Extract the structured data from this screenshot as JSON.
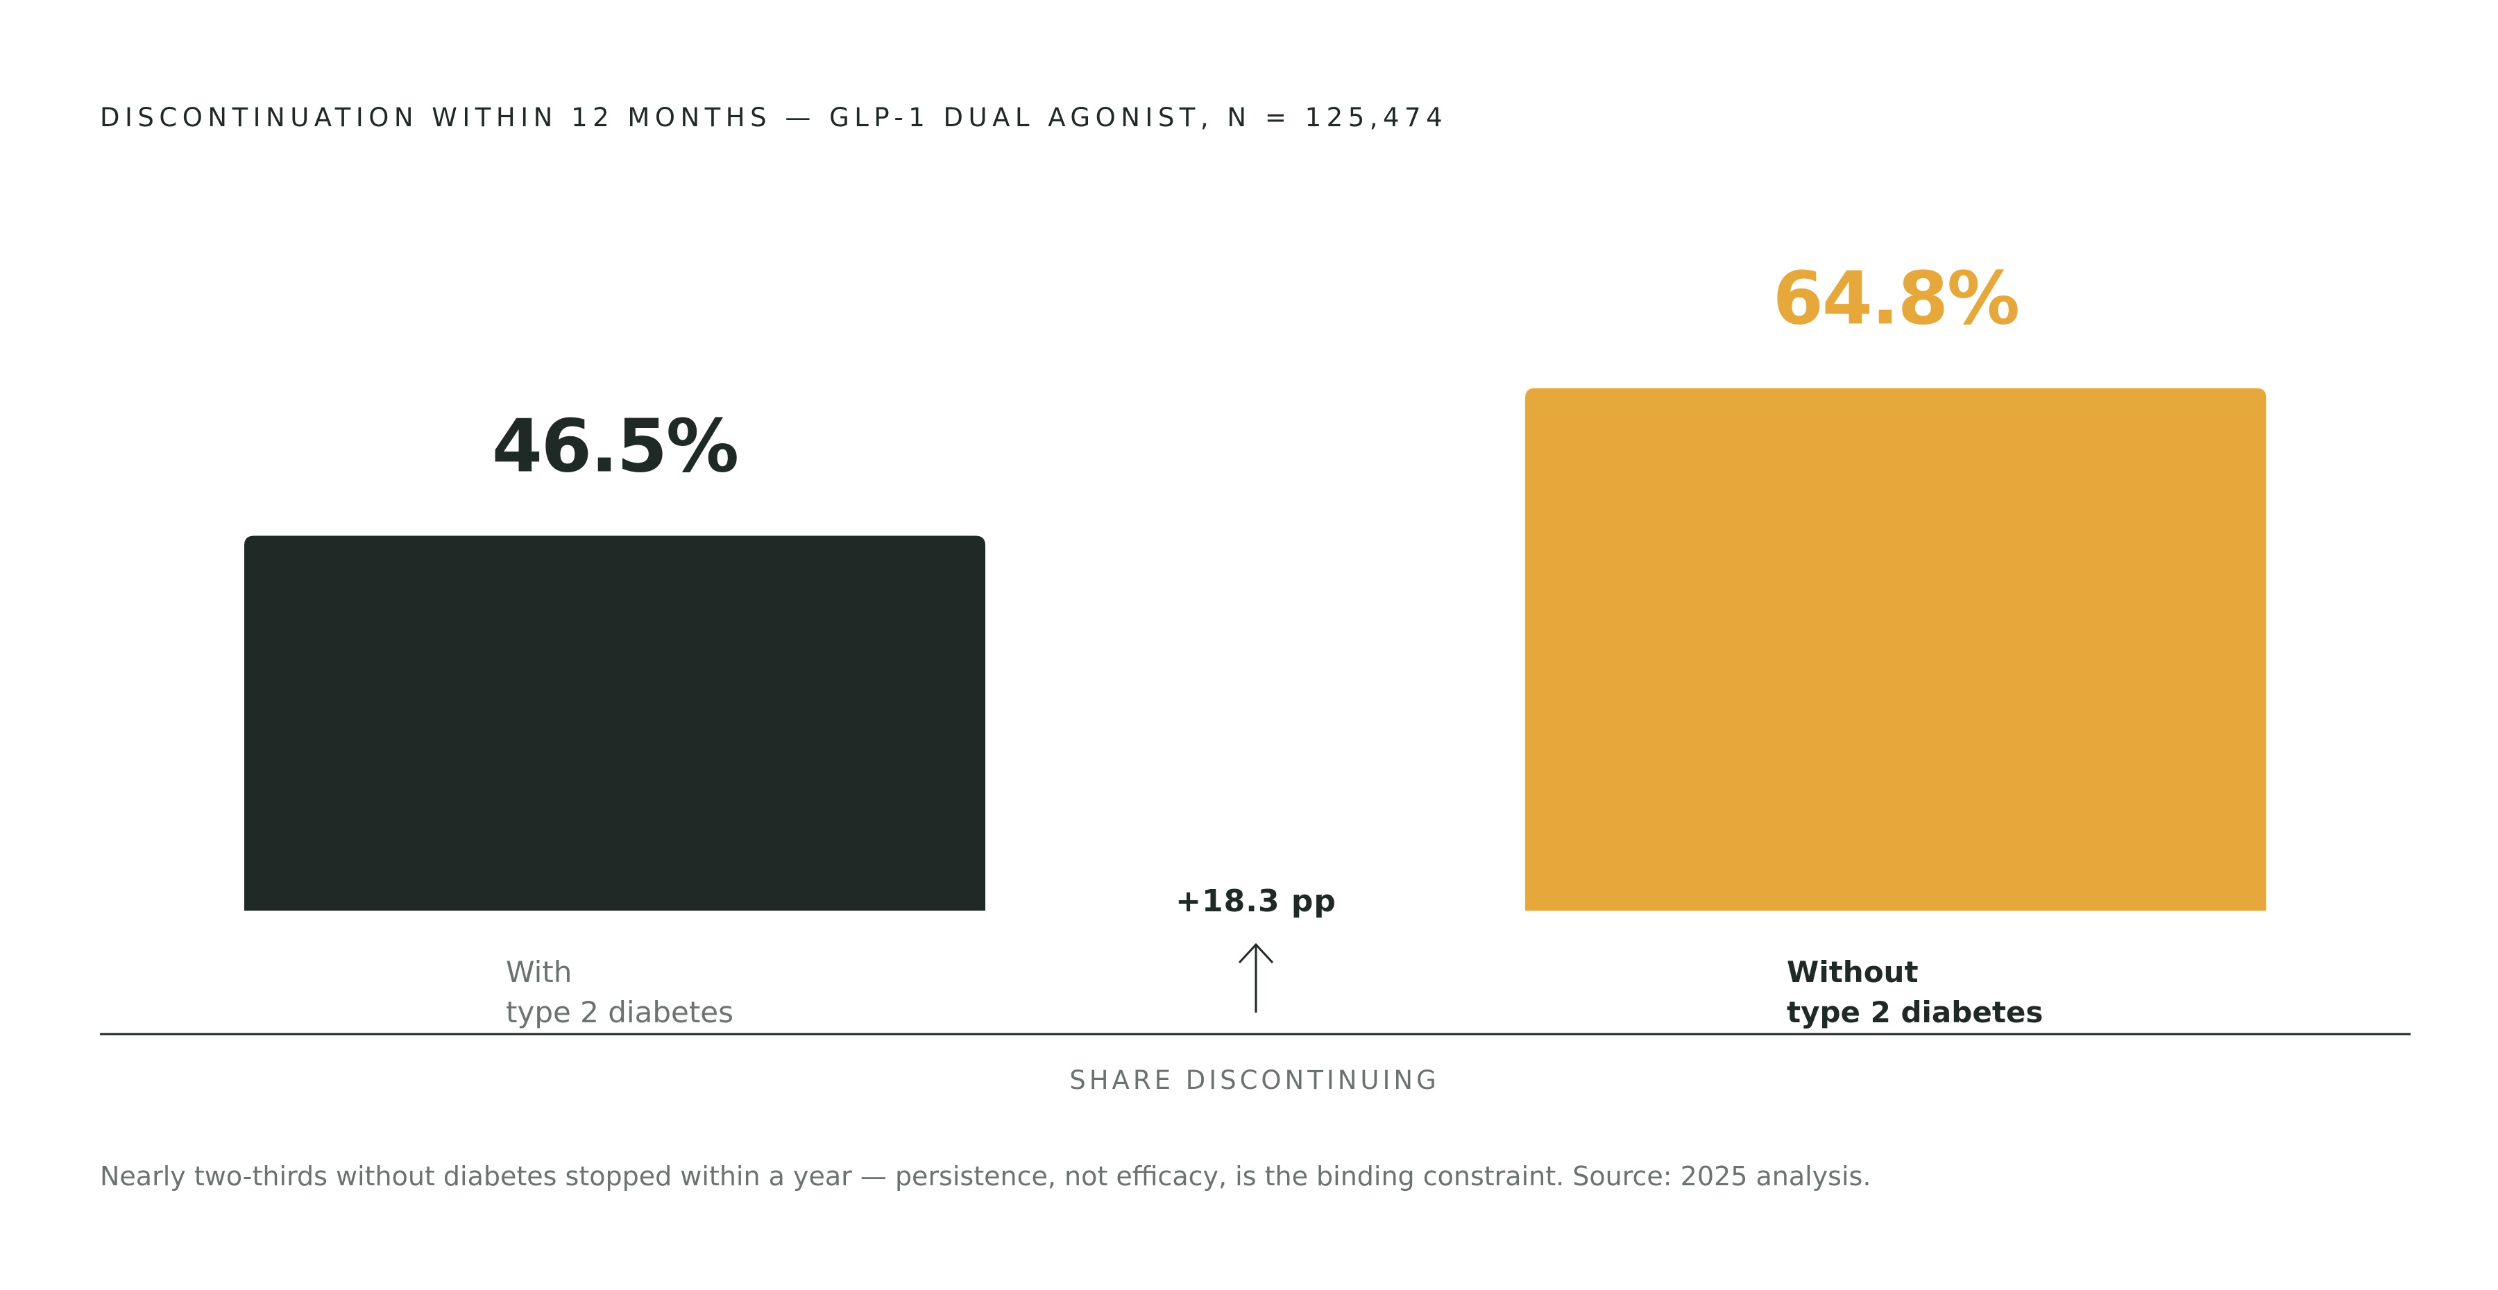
{
  "chart_data": {
    "type": "bar",
    "title": "DISCONTINUATION WITHIN 12 MONTHS — GLP-1 DUAL AGONIST, N = 125,474",
    "categories": [
      {
        "line1": "With",
        "line2": "type 2 diabetes"
      },
      {
        "line1": "Without",
        "line2": "type 2 diabetes"
      }
    ],
    "values": [
      46.5,
      64.8
    ],
    "value_labels": [
      "46.5%",
      "64.8%"
    ],
    "colors": [
      "#1f2a26",
      "#e6a83a"
    ],
    "label_colors": [
      "#1f2a26",
      "#e6a83a"
    ],
    "category_label_colors": [
      "#6b7370",
      "#1f2a26"
    ],
    "emphasized_category": 1,
    "ylim": [
      0,
      100
    ],
    "difference_label": "+18.3 pp",
    "xlabel": "SHARE DISCONTINUING",
    "ylabel": "",
    "grid": false,
    "legend": "none"
  },
  "footnote": "Nearly two-thirds without diabetes stopped within a year — persistence, not efficacy, is the binding constraint. Source: 2025 analysis."
}
